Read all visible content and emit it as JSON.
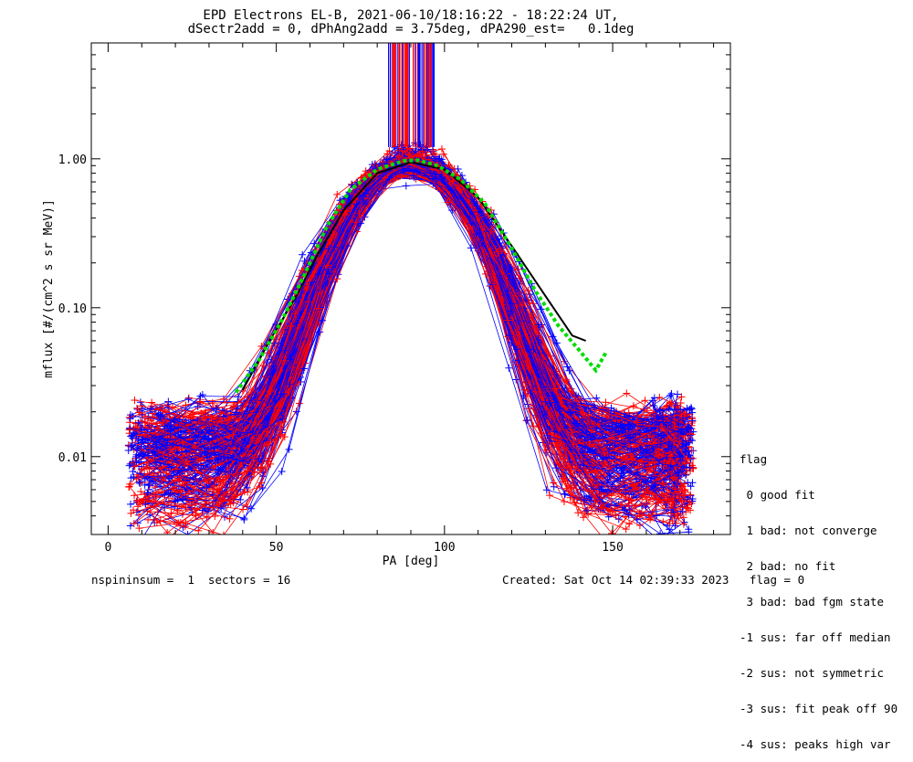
{
  "title": {
    "line1": "EPD Electrons EL-B, 2021-06-10/18:16:22 - 18:22:24 UT,",
    "line2": "dSectr2add = 0, dPhAng2add = 3.75deg, dPA290_est=   0.1deg"
  },
  "legend": {
    "heading": "flag",
    "items": [
      " 0 good fit",
      " 1 bad: not converge",
      " 2 bad: no fit",
      " 3 bad: bad fgm state",
      "-1 sus: far off median",
      "-2 sus: not symmetric",
      "-3 sus: fit peak off 90",
      "-4 sus: peaks high var"
    ]
  },
  "footer": {
    "left": "nspininsum =  1  sectors = 16",
    "right": "Created: Sat Oct 14 02:39:33 2023   flag = 0"
  },
  "colors": {
    "series_red": "#ff0000",
    "series_blue": "#0000ff",
    "fit_green": "#00dd00",
    "fit_black": "#000000"
  },
  "chart_data": {
    "type": "line",
    "xlabel": "PA [deg]",
    "ylabel": "mflux [#/(cm^2 s sr MeV)]",
    "xlim": [
      -5,
      185
    ],
    "ylim": [
      0.003,
      6.0
    ],
    "yscale": "log",
    "grid": false,
    "xticks": [
      0,
      50,
      100,
      150
    ],
    "xtick_labels": [
      "0",
      "50",
      "100",
      "150"
    ],
    "yticks": [
      0.01,
      0.1,
      1.0
    ],
    "ytick_labels": [
      "0.01",
      "0.10",
      "1.00"
    ],
    "series": [
      {
        "color": "red",
        "approx_x_range": [
          15,
          172
        ],
        "peak_value": 1.0,
        "note_values": "many overlapping sweeps, ~150 per color"
      },
      {
        "color": "blue",
        "approx_x_range": [
          8,
          168
        ],
        "peak_value": 1.0
      }
    ],
    "fit_curve": {
      "color": "green",
      "style": "dotted",
      "x": [
        38,
        45,
        52,
        58,
        65,
        72,
        80,
        88,
        92,
        98,
        105,
        112,
        120,
        127,
        134,
        140,
        145,
        148
      ],
      "y": [
        0.027,
        0.045,
        0.085,
        0.16,
        0.35,
        0.62,
        0.85,
        0.97,
        0.98,
        0.9,
        0.72,
        0.5,
        0.25,
        0.13,
        0.075,
        0.052,
        0.038,
        0.05
      ]
    },
    "median_curve": {
      "color": "black",
      "x": [
        40,
        48,
        55,
        62,
        70,
        80,
        90,
        100,
        110,
        120,
        130,
        138,
        142
      ],
      "y": [
        0.028,
        0.06,
        0.11,
        0.22,
        0.45,
        0.8,
        0.95,
        0.85,
        0.55,
        0.26,
        0.12,
        0.065,
        0.06
      ]
    }
  }
}
